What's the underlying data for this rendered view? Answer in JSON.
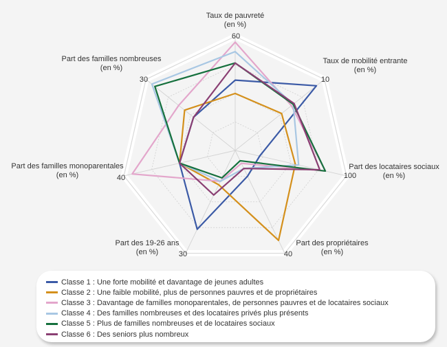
{
  "chart_data": {
    "type": "radar",
    "axes": [
      {
        "label_lines": [
          "Taux de pauvreté",
          "(en %)"
        ],
        "max_label": "60",
        "max": 60
      },
      {
        "label_lines": [
          "Taux de mobilité entrante",
          "(en %)"
        ],
        "max_label": "10",
        "max": 10
      },
      {
        "label_lines": [
          "Part des locataires sociaux",
          "(en %)"
        ],
        "max_label": "100",
        "max": 100
      },
      {
        "label_lines": [
          "Part des propriétaires",
          "(en %)"
        ],
        "max_label": "40",
        "max": 40
      },
      {
        "label_lines": [
          "Part des 19-26 ans",
          "(en %)"
        ],
        "max_label": "30",
        "max": 30
      },
      {
        "label_lines": [
          "Part des familles monoparentales",
          "(en %)"
        ],
        "max_label": "40",
        "max": 40
      },
      {
        "label_lines": [
          "Part des familles nombreuses",
          "(en %)"
        ],
        "max_label": "30",
        "max": 30
      }
    ],
    "grid": true,
    "series": [
      {
        "name": "Classe 1 : Une forte mobilité et davantage de jeunes adultes",
        "color": "#3b5aa6",
        "values": [
          37,
          9.1,
          22,
          10,
          23,
          20,
          14
        ]
      },
      {
        "name": "Classe 2 : Une faible mobilité, plus de personnes pauvres et de propriétaires",
        "color": "#d4901c",
        "values": [
          30,
          5.2,
          54,
          35,
          10,
          20,
          17
        ]
      },
      {
        "name": "Classe 3 : Davantage de familles monoparentales, de personnes pauvres et de locataires sociaux",
        "color": "#e3a6cb",
        "values": [
          57,
          6.3,
          81,
          5,
          9,
          37,
          19
        ]
      },
      {
        "name": "Classe 4 : Des familles nombreuses et des locataires privés plus présents",
        "color": "#a8c7e3",
        "values": [
          52,
          6.5,
          57,
          7,
          9,
          20,
          28
        ]
      },
      {
        "name": "Classe 5 : Plus de familles nombreuses et de locataires sociaux",
        "color": "#15703d",
        "values": [
          46,
          6.5,
          81,
          4,
          8,
          20,
          27
        ]
      },
      {
        "name": "Classe 6 : Des seniors plus nombreux",
        "color": "#8a3f73",
        "values": [
          46,
          6.6,
          76,
          7,
          13,
          20,
          14
        ]
      }
    ]
  }
}
